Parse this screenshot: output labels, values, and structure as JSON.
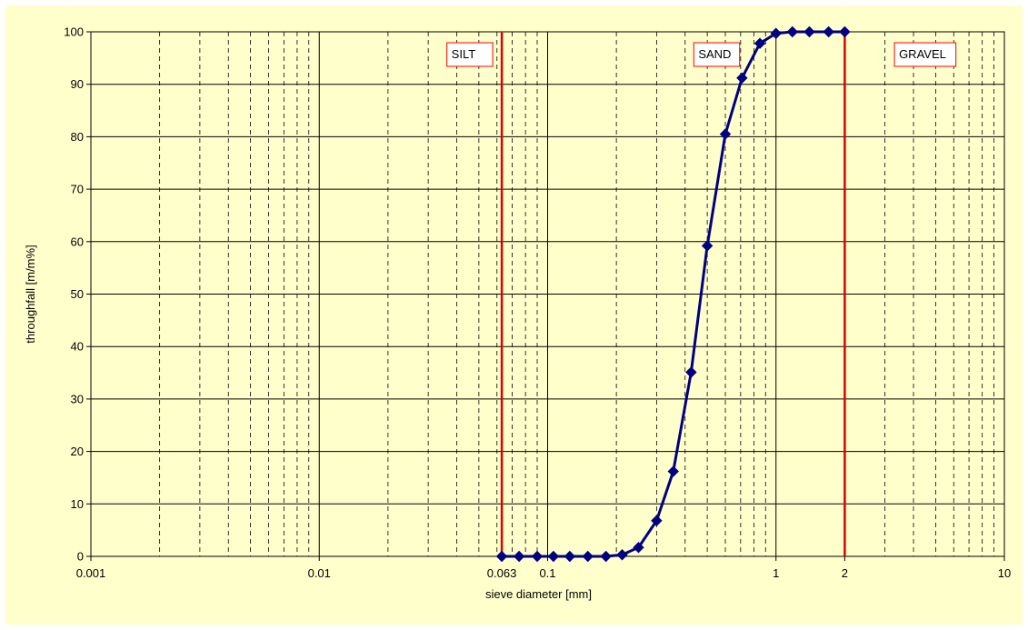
{
  "chart_data": {
    "type": "scatter",
    "title": "",
    "xlabel": "sieve diameter [mm]",
    "ylabel": "throughfall [m/m%]",
    "x_scale": "log",
    "xlim": [
      0.001,
      10
    ],
    "ylim": [
      0,
      100
    ],
    "x_ticks": [
      "0.001",
      "0.01",
      "0.063",
      "0.1",
      "1",
      "2",
      "10"
    ],
    "y_ticks": [
      "0",
      "10",
      "20",
      "30",
      "40",
      "50",
      "60",
      "70",
      "80",
      "90",
      "100"
    ],
    "grid": true,
    "legend": "none",
    "series": [
      {
        "color": "#000080",
        "marker": "diamond",
        "points": [
          {
            "x": 0.063,
            "y": 0
          },
          {
            "x": 0.075,
            "y": 0
          },
          {
            "x": 0.09,
            "y": 0
          },
          {
            "x": 0.106,
            "y": 0
          },
          {
            "x": 0.125,
            "y": 0
          },
          {
            "x": 0.15,
            "y": 0
          },
          {
            "x": 0.18,
            "y": 0
          },
          {
            "x": 0.212,
            "y": 0.3
          },
          {
            "x": 0.25,
            "y": 1.7
          },
          {
            "x": 0.3,
            "y": 6.8
          },
          {
            "x": 0.355,
            "y": 16.2
          },
          {
            "x": 0.425,
            "y": 35.1
          },
          {
            "x": 0.5,
            "y": 59.2
          },
          {
            "x": 0.6,
            "y": 80.5
          },
          {
            "x": 0.71,
            "y": 91.2
          },
          {
            "x": 0.85,
            "y": 97.8
          },
          {
            "x": 1.0,
            "y": 99.7
          },
          {
            "x": 1.18,
            "y": 100
          },
          {
            "x": 1.4,
            "y": 100
          },
          {
            "x": 1.7,
            "y": 100
          },
          {
            "x": 2.0,
            "y": 100
          }
        ]
      }
    ],
    "boundaries": [
      {
        "x": 0.063,
        "color": "#dd0000"
      },
      {
        "x": 2,
        "color": "#dd0000"
      }
    ],
    "zone_labels": [
      {
        "text": "SILT",
        "anchor_x": 0.063,
        "side": "left"
      },
      {
        "text": "SAND",
        "anchor_x": 0.55,
        "side": "center"
      },
      {
        "text": "GRAVEL",
        "anchor_x": 4.5,
        "side": "center"
      }
    ],
    "colors": {
      "plot_background": "#ffffcc",
      "frame_background": "#ffffcc",
      "grid_major": "#000000",
      "grid_minor": "#000000",
      "curve": "#000080",
      "boundary": "#dd0000",
      "label_border": "#ff0000"
    }
  }
}
